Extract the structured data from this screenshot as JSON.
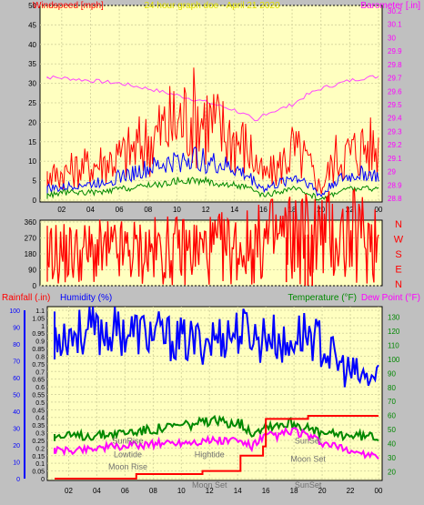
{
  "chart_data": [
    {
      "type": "line",
      "title": "24 hour graph doe - April 21 2020",
      "left_axis_label": "Windspeed [mph]",
      "right_axis_label": "Barometer [.in]",
      "x_ticks": [
        "02",
        "04",
        "06",
        "08",
        "10",
        "12",
        "14",
        "16",
        "18",
        "20",
        "22",
        "00"
      ],
      "y_left_ticks": [
        0,
        5,
        10,
        15,
        20,
        25,
        30,
        35,
        40,
        45,
        50
      ],
      "y_left_range": [
        0,
        50
      ],
      "y_right_ticks": [
        "28.8",
        "28.9",
        "29",
        "29.1",
        "29.2",
        "29.3",
        "29.4",
        "29.5",
        "29.6",
        "29.7",
        "29.8",
        "29.9",
        "30",
        "30.1",
        "30.2"
      ],
      "y_right_range": [
        28.8,
        30.2
      ],
      "grid": true,
      "series": [
        {
          "name": "Barometer",
          "color": "#ff44ff",
          "axis": "right",
          "x": [
            0,
            2,
            4,
            6,
            8,
            10,
            12,
            14,
            15,
            15.5,
            16,
            17,
            18,
            19,
            20,
            21,
            22,
            23,
            24
          ],
          "y": [
            29.71,
            29.7,
            29.68,
            29.66,
            29.62,
            29.57,
            29.52,
            29.46,
            29.41,
            29.36,
            29.43,
            29.46,
            29.5,
            29.57,
            29.62,
            29.65,
            29.68,
            29.7,
            29.71
          ]
        },
        {
          "name": "Wind gust",
          "color": "#ff0000",
          "axis": "left",
          "x": [
            0,
            1,
            2,
            3,
            4,
            5,
            6,
            7,
            8,
            9,
            10,
            11,
            12,
            13,
            14,
            15,
            16,
            17,
            18,
            19,
            20,
            21,
            22,
            23,
            24
          ],
          "y": [
            5,
            6,
            7,
            8,
            9,
            10,
            11,
            13,
            15,
            18,
            20,
            22,
            21,
            18,
            16,
            13,
            6,
            8,
            13,
            10,
            3,
            11,
            12,
            14,
            13
          ]
        },
        {
          "name": "Wind average",
          "color": "#0000ff",
          "axis": "left",
          "x": [
            0,
            1,
            2,
            3,
            4,
            5,
            6,
            7,
            8,
            9,
            10,
            11,
            12,
            13,
            14,
            15,
            16,
            17,
            18,
            19,
            20,
            21,
            22,
            23,
            24
          ],
          "y": [
            2,
            3,
            3,
            4,
            4,
            5,
            6,
            7,
            8,
            9,
            10,
            11,
            10,
            9,
            8,
            6,
            3,
            4,
            6,
            5,
            1,
            5,
            6,
            7,
            6
          ]
        },
        {
          "name": "Wind minimum",
          "color": "#008800",
          "axis": "left",
          "x": [
            0,
            1,
            2,
            3,
            4,
            5,
            6,
            7,
            8,
            9,
            10,
            11,
            12,
            13,
            14,
            15,
            16,
            17,
            18,
            19,
            20,
            21,
            22,
            23,
            24
          ],
          "y": [
            1,
            1,
            2,
            2,
            2,
            2,
            3,
            3,
            4,
            4,
            5,
            5,
            5,
            4,
            4,
            3,
            1,
            2,
            3,
            2,
            0,
            2,
            3,
            3,
            3
          ]
        }
      ]
    },
    {
      "type": "line",
      "title": "",
      "y_left_ticks": [
        0,
        90,
        180,
        270,
        360
      ],
      "y_left_range": [
        0,
        360
      ],
      "right_letters": [
        "N",
        "W",
        "S",
        "E",
        "N"
      ],
      "series": [
        {
          "name": "Wind direction",
          "color": "#ff0000",
          "x": [
            0,
            2,
            4,
            6,
            8,
            10,
            12,
            14,
            15,
            15.7,
            16,
            17,
            18,
            19,
            20,
            21,
            22,
            23,
            24
          ],
          "y": [
            180,
            182,
            185,
            190,
            195,
            200,
            205,
            215,
            220,
            230,
            250,
            270,
            275,
            290,
            285,
            278,
            275,
            272,
            270
          ]
        }
      ],
      "dropouts": [
        {
          "x": 17.6,
          "y": 20
        },
        {
          "x": 18.9,
          "y": 0
        },
        {
          "x": 19.1,
          "y": 0
        },
        {
          "x": 19.4,
          "y": 0
        }
      ]
    },
    {
      "type": "line",
      "title": "",
      "labels": {
        "rainfall": "Rainfall (.in)",
        "humidity": "Humidity (%)",
        "temperature": "Temperature (°F)",
        "dewpoint": "Dew Point (°F)"
      },
      "x_ticks": [
        "02",
        "04",
        "06",
        "08",
        "10",
        "12",
        "14",
        "16",
        "18",
        "20",
        "22",
        "00"
      ],
      "y_rain_ticks": [
        "0",
        "0.05",
        "0.1",
        "0.15",
        "0.2",
        "0.25",
        "0.3",
        "0.35",
        "0.4",
        "0.45",
        "0.5",
        "0.55",
        "0.6",
        "0.65",
        "0.7",
        "0.75",
        "0.8",
        "0.85",
        "0.9",
        "0.95",
        "1",
        "1.05",
        "1.1"
      ],
      "y_rain_range": [
        0,
        1.1
      ],
      "y_humidity_ticks": [
        0,
        10,
        20,
        30,
        40,
        50,
        60,
        70,
        80,
        90,
        100
      ],
      "y_humidity_range": [
        0,
        100
      ],
      "y_temp_ticks": [
        20,
        30,
        40,
        50,
        60,
        70,
        80,
        90,
        100,
        110,
        120,
        130
      ],
      "y_temp_range": [
        15,
        135
      ],
      "series": [
        {
          "name": "Humidity",
          "color": "#0000ff",
          "axis": "temp",
          "x": [
            0,
            1,
            2,
            4,
            6,
            8,
            10,
            11,
            12,
            13,
            14,
            15,
            15.5,
            16,
            17,
            17.5,
            18,
            19,
            20,
            21,
            22,
            23,
            24
          ],
          "y": [
            117,
            118,
            119,
            120,
            120,
            118,
            113,
            112,
            114,
            117,
            120,
            120,
            112,
            119,
            113,
            105,
            117,
            119,
            110,
            98,
            90,
            86,
            87
          ]
        },
        {
          "name": "Temperature",
          "color": "#008800",
          "axis": "temp",
          "x": [
            0,
            2,
            4,
            6,
            8,
            10,
            12,
            14,
            15,
            16,
            17,
            18,
            19,
            20,
            22,
            24
          ],
          "y": [
            45,
            45,
            46,
            48,
            50,
            53,
            55,
            56,
            48,
            53,
            54,
            55,
            50,
            47,
            46,
            45
          ]
        },
        {
          "name": "Dew Point",
          "color": "#ff00ff",
          "axis": "temp",
          "x": [
            0,
            2,
            4,
            6,
            8,
            10,
            12,
            14,
            15,
            16,
            17,
            18,
            19,
            20,
            22,
            24
          ],
          "y": [
            35,
            35,
            37,
            38,
            40,
            41,
            42,
            42,
            38,
            45,
            46,
            49,
            45,
            40,
            35,
            30
          ]
        },
        {
          "name": "Rainfall",
          "color": "#ff0000",
          "axis": "rain",
          "x": [
            0,
            6.8,
            6.8,
            11.5,
            11.5,
            14.2,
            14.2,
            15.8,
            15.8,
            16,
            16,
            19,
            19,
            24
          ],
          "y": [
            0,
            0,
            0.03,
            0.03,
            0.05,
            0.05,
            0.15,
            0.15,
            0.21,
            0.21,
            0.39,
            0.39,
            0.41,
            0.41
          ]
        }
      ],
      "annotations": [
        {
          "text": "SunRise",
          "x": 6.2,
          "y": 0.23
        },
        {
          "text": "Lowtide",
          "x": 6.2,
          "y": 0.14
        },
        {
          "text": "Moon Rise",
          "x": 6.2,
          "y": 0.06
        },
        {
          "text": "Hightide",
          "x": 12.0,
          "y": 0.14
        },
        {
          "text": "Moon Set",
          "x": 12.0,
          "y": -0.06
        },
        {
          "text": "SunSet",
          "x": 19.0,
          "y": 0.23
        },
        {
          "text": "Moon Set",
          "x": 19.0,
          "y": 0.11
        },
        {
          "text": "SunSet",
          "x": 19.0,
          "y": -0.06
        }
      ]
    }
  ]
}
